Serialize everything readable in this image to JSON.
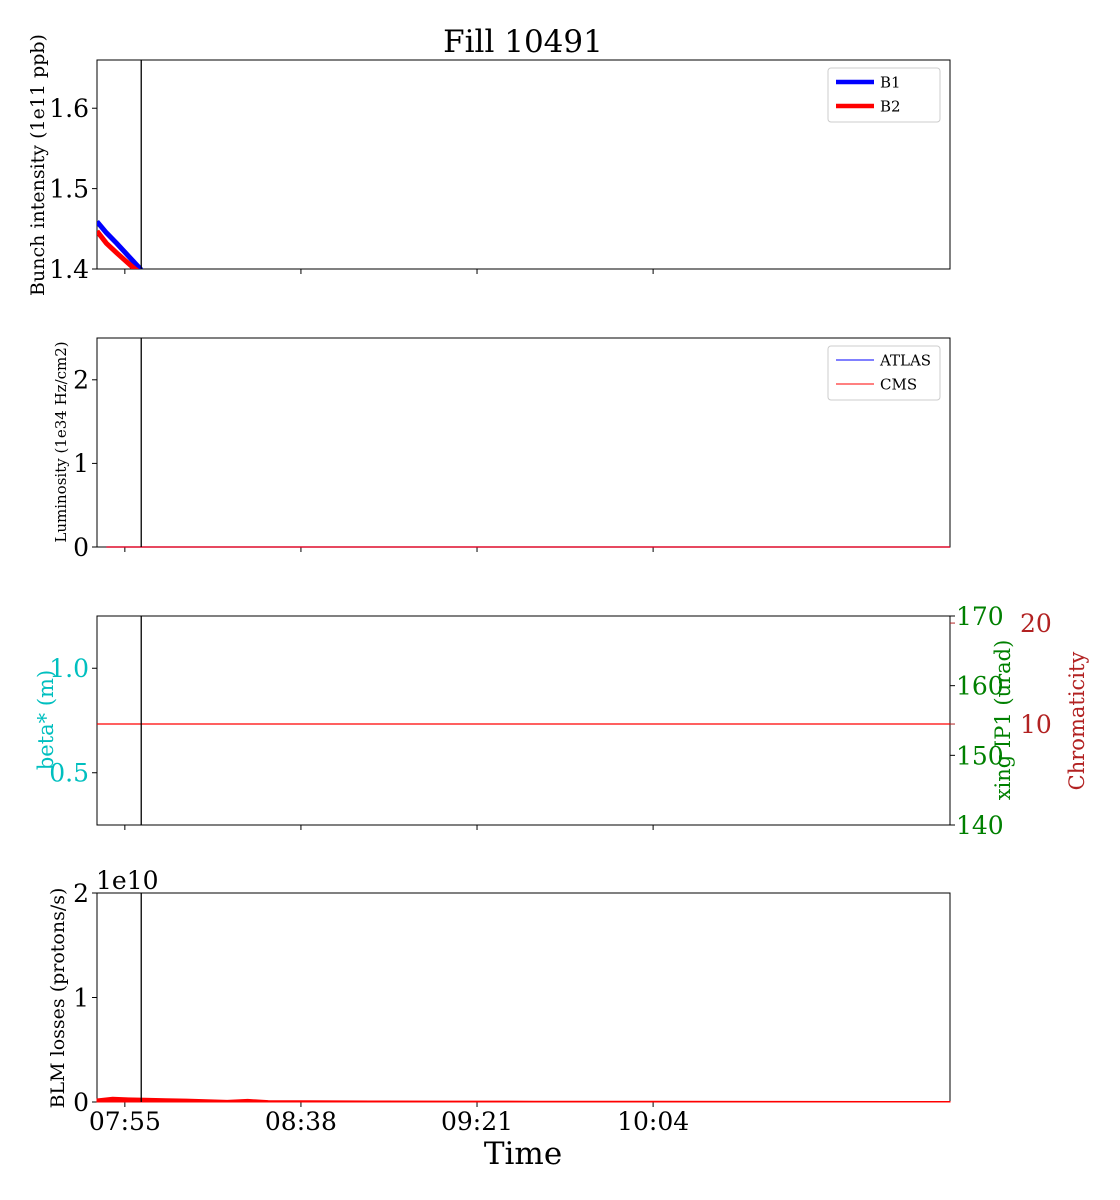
{
  "figure": {
    "title": "Fill 10491",
    "xlabel": "Time",
    "colors": {
      "b1": "#0000ff",
      "b2": "#ff0000",
      "cyan": "#00bfbf",
      "green": "#008000",
      "crimson": "#b22222",
      "frame": "#000000"
    }
  },
  "chart_data": [
    {
      "type": "line",
      "panel": "intensity",
      "ylabel": "Bunch intensity (1e11 ppb)",
      "x_domain_minutes": [
        -6.8,
        201.5
      ],
      "ylim": [
        1.4,
        1.66
      ],
      "yticks": [
        1.4,
        1.5,
        1.6
      ],
      "ytick_labels": [
        "1.4",
        "1.5",
        "1.6"
      ],
      "xticks_minutes": [
        0,
        43,
        86,
        129
      ],
      "legend": {
        "placement": "upper right",
        "entries": [
          "B1",
          "B2"
        ]
      },
      "vline_minutes": 4,
      "series": [
        {
          "name": "B1",
          "color": "#0000ff",
          "x": [
            -6.8,
            -4.5,
            -2,
            0,
            2,
            4
          ],
          "y": [
            1.459,
            1.445,
            1.432,
            1.421,
            1.41,
            1.399
          ]
        },
        {
          "name": "B2",
          "color": "#ff0000",
          "x": [
            -6.8,
            -4.5,
            -2,
            0,
            2,
            4
          ],
          "y": [
            1.447,
            1.432,
            1.42,
            1.411,
            1.402,
            1.394
          ]
        }
      ]
    },
    {
      "type": "line",
      "panel": "luminosity",
      "ylabel": "Luminosity (1e34 Hz/cm2)",
      "ylim": [
        0,
        2.5
      ],
      "yticks": [
        0,
        1,
        2
      ],
      "ytick_labels": [
        "0",
        "1",
        "2"
      ],
      "legend": {
        "placement": "upper right",
        "entries": [
          "ATLAS",
          "CMS"
        ]
      },
      "vline_minutes": 4,
      "series": [
        {
          "name": "ATLAS",
          "color": "#0000ff",
          "x": [
            -4.5,
            201.5
          ],
          "y": [
            0,
            0
          ]
        },
        {
          "name": "CMS",
          "color": "#ff0000",
          "x": [
            -4.5,
            201.5
          ],
          "y": [
            0,
            0
          ]
        }
      ]
    },
    {
      "type": "line",
      "panel": "optics",
      "ylabel_left": "beta* (m)",
      "ylabel_right": "xing IP1 (urad)",
      "ylabel_right2": "Chromaticity",
      "ylim_left": [
        0.25,
        1.25
      ],
      "yticks_left": [
        0.5,
        1.0
      ],
      "ytick_labels_left": [
        "0.5",
        "1.0"
      ],
      "ylim_right": [
        140,
        170
      ],
      "yticks_right": [
        140,
        150,
        160,
        170
      ],
      "ytick_labels_right": [
        "140",
        "150",
        "160",
        "170"
      ],
      "ylim_right2": [
        0,
        20.7
      ],
      "yticks_right2": [
        10,
        20
      ],
      "ytick_labels_right2": [
        "10",
        "20"
      ],
      "vline_minutes": 4,
      "series": [
        {
          "color": "#ff0000",
          "axis": "right2",
          "x": [
            -6.8,
            201.5
          ],
          "y": [
            10,
            10
          ]
        }
      ]
    },
    {
      "type": "area",
      "panel": "blm",
      "ylabel": "BLM losses (protons/s)",
      "offset_text": "1e10",
      "ylim": [
        0,
        2
      ],
      "yticks": [
        0,
        1,
        2
      ],
      "ytick_labels": [
        "0",
        "1",
        "2"
      ],
      "xtick_labels": [
        "07:55",
        "08:38",
        "09:21",
        "10:04"
      ],
      "vline_minutes": 4,
      "series": [
        {
          "color": "#ff0000",
          "units": "1e10 protons/s",
          "x": [
            -6.8,
            -3,
            0,
            5,
            10,
            15,
            25,
            30,
            35,
            40,
            45,
            60,
            80,
            100,
            130,
            160,
            201.5
          ],
          "y": [
            0.03,
            0.045,
            0.04,
            0.035,
            0.032,
            0.028,
            0.015,
            0.025,
            0.013,
            0.012,
            0.012,
            0.01,
            0.009,
            0.008,
            0.007,
            0.006,
            0.005
          ]
        }
      ]
    }
  ]
}
